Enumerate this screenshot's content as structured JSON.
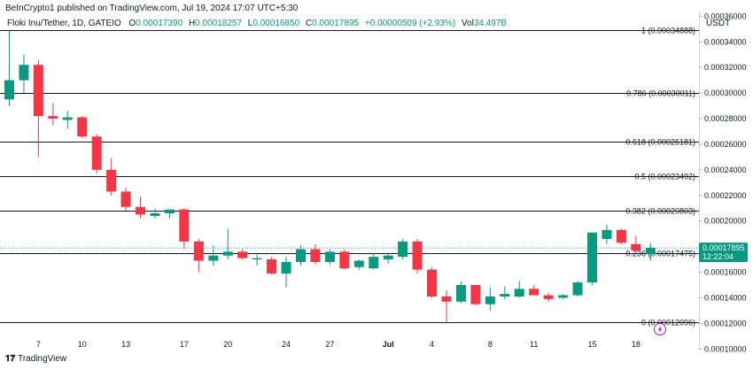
{
  "header": {
    "publisher": "BeInCrypto1 published on TradingView.com, Jul 19, 2024 17:07 UTC+5:30",
    "symbol": "Floki Inu/Tether, 1D, GATEIO",
    "open_label": "O",
    "open": "0.00017390",
    "high_label": "H",
    "high": "0.00018257",
    "low_label": "L",
    "low": "0.00016850",
    "close_label": "C",
    "close": "0.00017895",
    "change": "+0.00000509 (+2.93%)",
    "vol_label": "Vol",
    "vol": "34.497B",
    "quote": "USDT"
  },
  "footer": {
    "brand": "TradingView",
    "logo": "tradingview-logo-icon"
  },
  "colors": {
    "up": "#089981",
    "down": "#f23645",
    "last_price_bg": "#089981",
    "fib_line": "#131722"
  },
  "chart_data": {
    "type": "candlestick",
    "y_axis": {
      "ticks": [
        "0.00036000",
        "0.00034000",
        "0.00032000",
        "0.00030000",
        "0.00028000",
        "0.00026000",
        "0.00024000",
        "0.00022000",
        "0.00020000",
        "0.00018000",
        "0.00016000",
        "0.00014000",
        "0.00012000",
        "0.00010000"
      ],
      "ylim": [
        9.95e-05,
        0.000363
      ]
    },
    "x_axis": {
      "ticks": [
        {
          "label": "7",
          "day": 2
        },
        {
          "label": "10",
          "day": 5
        },
        {
          "label": "13",
          "day": 8
        },
        {
          "label": "17",
          "day": 12
        },
        {
          "label": "20",
          "day": 15
        },
        {
          "label": "24",
          "day": 19
        },
        {
          "label": "27",
          "day": 22
        },
        {
          "label": "Jul",
          "day": 26
        },
        {
          "label": "4",
          "day": 29
        },
        {
          "label": "8",
          "day": 33
        },
        {
          "label": "11",
          "day": 36
        },
        {
          "label": "15",
          "day": 40
        },
        {
          "label": "18",
          "day": 43
        }
      ]
    },
    "last_price": {
      "value": 0.00017895,
      "label": "0.00017895",
      "countdown": "12:22:04"
    },
    "fib_levels": [
      {
        "ratio": "1",
        "value": 0.00034888,
        "label": "1 (0.00034888)"
      },
      {
        "ratio": "0.786",
        "value": 0.00030011,
        "label": "0.786 (0.00030011)"
      },
      {
        "ratio": "0.618",
        "value": 0.00026181,
        "label": "0.618 (0.00026181)"
      },
      {
        "ratio": "0.5",
        "value": 0.00023492,
        "label": "0.5 (0.00023492)"
      },
      {
        "ratio": "0.382",
        "value": 0.00020803,
        "label": "0.382 (0.00020803)"
      },
      {
        "ratio": "0.236",
        "value": 0.00017475,
        "label": "0.236 (0.00017475)"
      },
      {
        "ratio": "0",
        "value": 0.00012096,
        "label": "0 (0.00012096)"
      }
    ],
    "candles": [
      {
        "o": 0.000295,
        "h": 0.000349,
        "l": 0.00029,
        "c": 0.00031
      },
      {
        "o": 0.00031,
        "h": 0.00033,
        "l": 0.0003,
        "c": 0.000322
      },
      {
        "o": 0.000322,
        "h": 0.000326,
        "l": 0.00025,
        "c": 0.000282
      },
      {
        "o": 0.000282,
        "h": 0.000292,
        "l": 0.000275,
        "c": 0.00028
      },
      {
        "o": 0.000279,
        "h": 0.000286,
        "l": 0.000272,
        "c": 0.000281
      },
      {
        "o": 0.000281,
        "h": 0.000282,
        "l": 0.000265,
        "c": 0.000266
      },
      {
        "o": 0.000266,
        "h": 0.000268,
        "l": 0.000237,
        "c": 0.00024
      },
      {
        "o": 0.00024,
        "h": 0.000249,
        "l": 0.00022,
        "c": 0.000223
      },
      {
        "o": 0.000223,
        "h": 0.000226,
        "l": 0.000208,
        "c": 0.000211
      },
      {
        "o": 0.000211,
        "h": 0.000219,
        "l": 0.000202,
        "c": 0.000205
      },
      {
        "o": 0.000204,
        "h": 0.00021,
        "l": 0.000202,
        "c": 0.000206
      },
      {
        "o": 0.000206,
        "h": 0.000209,
        "l": 0.000202,
        "c": 0.000209
      },
      {
        "o": 0.000209,
        "h": 0.00021,
        "l": 0.000178,
        "c": 0.000184
      },
      {
        "o": 0.000184,
        "h": 0.000186,
        "l": 0.00016,
        "c": 0.000169
      },
      {
        "o": 0.000169,
        "h": 0.000181,
        "l": 0.000165,
        "c": 0.000173
      },
      {
        "o": 0.000173,
        "h": 0.000194,
        "l": 0.00017,
        "c": 0.000176
      },
      {
        "o": 0.000176,
        "h": 0.000178,
        "l": 0.00017,
        "c": 0.000171
      },
      {
        "o": 0.00017,
        "h": 0.000174,
        "l": 0.000165,
        "c": 0.000171
      },
      {
        "o": 0.00017,
        "h": 0.000172,
        "l": 0.000158,
        "c": 0.000159
      },
      {
        "o": 0.000159,
        "h": 0.000172,
        "l": 0.000148,
        "c": 0.000168
      },
      {
        "o": 0.000168,
        "h": 0.000181,
        "l": 0.000165,
        "c": 0.000178
      },
      {
        "o": 0.000178,
        "h": 0.000182,
        "l": 0.000166,
        "c": 0.000168
      },
      {
        "o": 0.000168,
        "h": 0.000178,
        "l": 0.000166,
        "c": 0.000176
      },
      {
        "o": 0.000176,
        "h": 0.000178,
        "l": 0.000162,
        "c": 0.000163
      },
      {
        "o": 0.000164,
        "h": 0.00017,
        "l": 0.000162,
        "c": 0.000169
      },
      {
        "o": 0.000163,
        "h": 0.000175,
        "l": 0.000162,
        "c": 0.000172
      },
      {
        "o": 0.00017,
        "h": 0.000174,
        "l": 0.000167,
        "c": 0.000173
      },
      {
        "o": 0.000172,
        "h": 0.000186,
        "l": 0.00017,
        "c": 0.000184
      },
      {
        "o": 0.000184,
        "h": 0.000186,
        "l": 0.000159,
        "c": 0.000162
      },
      {
        "o": 0.000162,
        "h": 0.000164,
        "l": 0.00014,
        "c": 0.000141
      },
      {
        "o": 0.000141,
        "h": 0.000146,
        "l": 0.00012,
        "c": 0.000137
      },
      {
        "o": 0.000137,
        "h": 0.000153,
        "l": 0.000136,
        "c": 0.00015
      },
      {
        "o": 0.00015,
        "h": 0.00015,
        "l": 0.000134,
        "c": 0.000135
      },
      {
        "o": 0.000135,
        "h": 0.000148,
        "l": 0.00013,
        "c": 0.000141
      },
      {
        "o": 0.000141,
        "h": 0.000149,
        "l": 0.000139,
        "c": 0.000143
      },
      {
        "o": 0.000141,
        "h": 0.000153,
        "l": 0.00014,
        "c": 0.000147
      },
      {
        "o": 0.000147,
        "h": 0.00015,
        "l": 0.000142,
        "c": 0.000142
      },
      {
        "o": 0.000142,
        "h": 0.000144,
        "l": 0.000137,
        "c": 0.000139
      },
      {
        "o": 0.00014,
        "h": 0.000143,
        "l": 0.000139,
        "c": 0.000142
      },
      {
        "o": 0.000142,
        "h": 0.000153,
        "l": 0.000141,
        "c": 0.000152
      },
      {
        "o": 0.000152,
        "h": 0.000191,
        "l": 0.00015,
        "c": 0.000191
      },
      {
        "o": 0.000186,
        "h": 0.000197,
        "l": 0.000182,
        "c": 0.000193
      },
      {
        "o": 0.000193,
        "h": 0.000194,
        "l": 0.000182,
        "c": 0.000183
      },
      {
        "o": 0.000182,
        "h": 0.000188,
        "l": 0.000176,
        "c": 0.000177
      },
      {
        "o": 0.000174,
        "h": 0.000183,
        "l": 0.000169,
        "c": 0.000179
      }
    ]
  }
}
